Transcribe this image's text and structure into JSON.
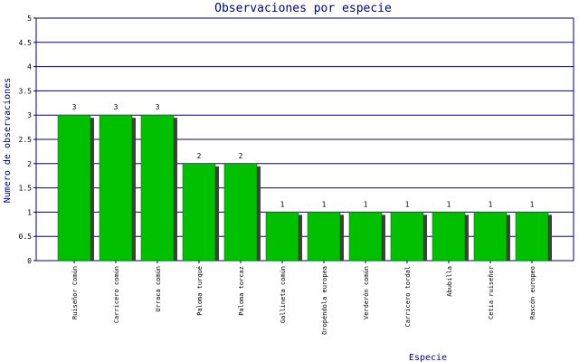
{
  "chart_data": {
    "type": "bar",
    "title": "Observaciones por especie",
    "xlabel": "Especie",
    "ylabel": "Numero de observaciones",
    "ylim": [
      0,
      5
    ],
    "yticks": [
      "0",
      "0.5",
      "1",
      "1.5",
      "2",
      "2.5",
      "3",
      "3.5",
      "4",
      "4.5",
      "5"
    ],
    "grid": true,
    "categories": [
      "Ruiseñor Común",
      "Carricero común",
      "Urraca común",
      "Paloma turqué",
      "Paloma torcaz",
      "Gallineta común",
      "Oropéndola europea",
      "Verderón común",
      "Carricero tordal",
      "Abubilla",
      "Cetia ruiseñor",
      "Rascón europeo"
    ],
    "values": [
      3,
      3,
      3,
      2,
      2,
      1,
      1,
      1,
      1,
      1,
      1,
      1
    ],
    "value_labels": [
      "3",
      "3",
      "3",
      "2",
      "2",
      "1",
      "1",
      "1",
      "1",
      "1",
      "1",
      "1"
    ],
    "colors": {
      "bar": "#00c000",
      "shadow": "#404040",
      "grid": "#000080",
      "title": "#000080"
    }
  }
}
